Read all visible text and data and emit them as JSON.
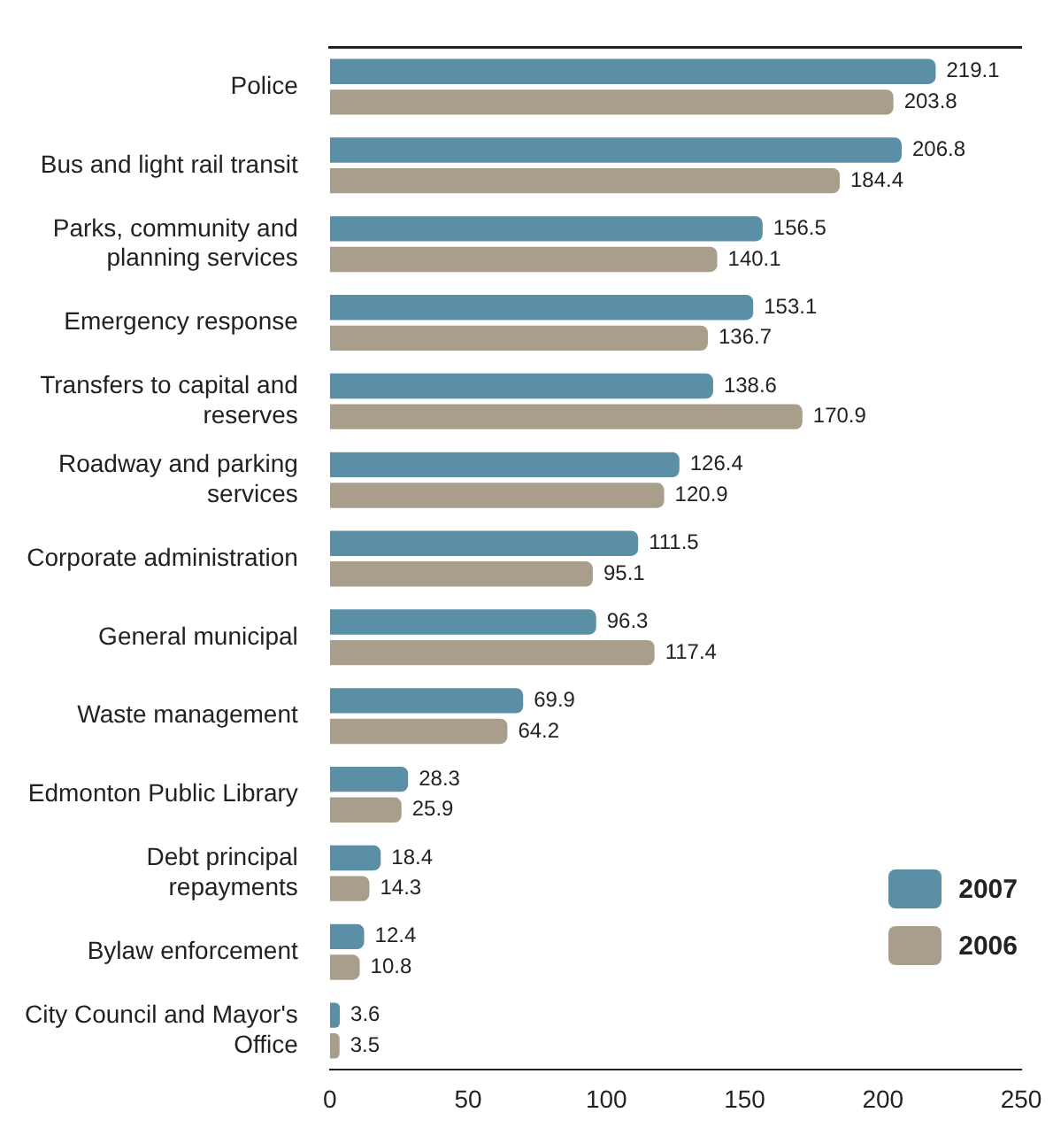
{
  "chart_data": {
    "type": "bar",
    "orientation": "horizontal",
    "categories": [
      "Police",
      "Bus and light rail transit",
      "Parks, community and planning services",
      "Emergency response",
      "Transfers to capital and reserves",
      "Roadway and parking services",
      "Corporate administration",
      "General municipal",
      "Waste management",
      "Edmonton Public Library",
      "Debt principal repayments",
      "Bylaw enforcement",
      "City Council and Mayor's Office"
    ],
    "series": [
      {
        "name": "2007",
        "color": "#5a8fa5",
        "values": [
          219.1,
          206.8,
          156.5,
          153.1,
          138.6,
          126.4,
          111.5,
          96.3,
          69.9,
          28.3,
          18.4,
          12.4,
          3.6
        ]
      },
      {
        "name": "2006",
        "color": "#a99d8b",
        "values": [
          203.8,
          184.4,
          140.1,
          136.7,
          170.9,
          120.9,
          95.1,
          117.4,
          64.2,
          25.9,
          14.3,
          10.8,
          3.5
        ]
      }
    ],
    "xlim": [
      0,
      250
    ],
    "xticks": [
      0,
      50,
      100,
      150,
      200,
      250
    ],
    "data_labels": true,
    "legend": "bottom right",
    "grid": false
  }
}
